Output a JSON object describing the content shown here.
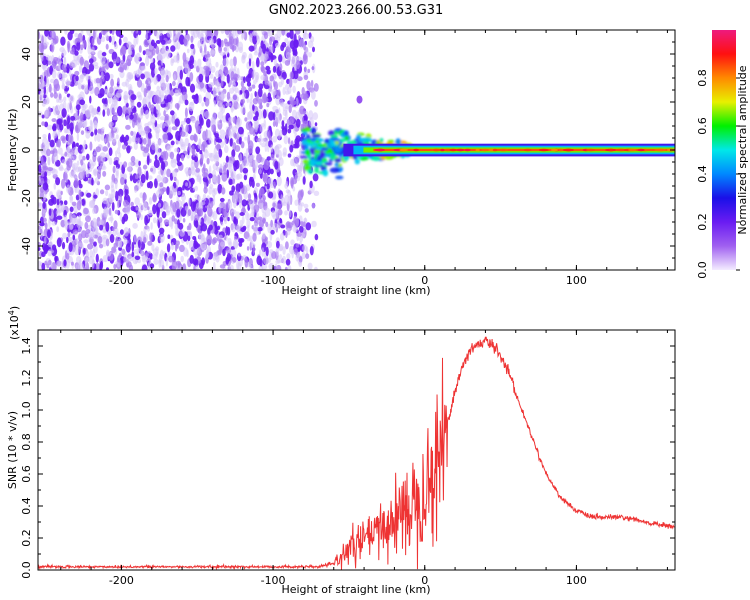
{
  "title": "GN02.2023.266.00.53.G31",
  "chart_data": [
    {
      "type": "heatmap",
      "xlabel": "Height of straight line (km)",
      "ylabel": "Frequency (Hz)",
      "xlim": [
        -255,
        165
      ],
      "ylim": [
        -50,
        50
      ],
      "xticks": [
        -200,
        -100,
        0,
        100
      ],
      "yticks": [
        -40,
        -20,
        0,
        20,
        40
      ],
      "colorbar": {
        "label": "Normalized spectral amplitude",
        "range": [
          0,
          1
        ],
        "ticks": [
          "0.0",
          "0.2",
          "0.4",
          "0.6",
          "0.8"
        ],
        "colormap": [
          "#f4ecff",
          "#a060f0",
          "#6a1cf2",
          "#1a10e8",
          "#0088ff",
          "#00e8e8",
          "#00f000",
          "#e8f000",
          "#ff8a00",
          "#ff1010",
          "#ee1a7e"
        ]
      },
      "noise_region": {
        "x": [
          -255,
          -78
        ],
        "y": [
          -50,
          50
        ],
        "amplitude": 0.15
      },
      "signal_band": {
        "x": [
          -80,
          165
        ],
        "center_hz": 0,
        "halfwidth_hz": [
          10,
          1.2
        ],
        "amplitude": 0.85
      },
      "outlier": {
        "x": -43,
        "y": 21,
        "amplitude": 0.12
      }
    },
    {
      "type": "line",
      "xlabel": "Height of straight line (km)",
      "ylabel": "SNR (10 * v/v)",
      "yscale_label": "(x10",
      "yscale_exp": "4",
      "xlim": [
        -255,
        165
      ],
      "ylim": [
        0,
        1.5
      ],
      "xticks": [
        -200,
        -100,
        0,
        100
      ],
      "yticks": [
        "0.0",
        "0.2",
        "0.4",
        "0.6",
        "0.8",
        "1.0",
        "1.2",
        "1.4"
      ],
      "color": "#ee3333",
      "series": [
        {
          "x": [
            -255,
            -200,
            -150,
            -100,
            -70,
            -60,
            -52,
            -45,
            -38,
            -30,
            -22,
            -15,
            -8,
            -2,
            5,
            12,
            18,
            25,
            32,
            40,
            48,
            55,
            62,
            70,
            80,
            90,
            100,
            110,
            120,
            130,
            140,
            150,
            165
          ],
          "y": [
            0.02,
            0.02,
            0.02,
            0.02,
            0.02,
            0.04,
            0.12,
            0.16,
            0.2,
            0.24,
            0.3,
            0.36,
            0.42,
            0.5,
            0.6,
            0.78,
            1.05,
            1.28,
            1.4,
            1.43,
            1.38,
            1.25,
            1.05,
            0.85,
            0.6,
            0.45,
            0.37,
            0.33,
            0.33,
            0.33,
            0.31,
            0.29,
            0.27
          ]
        }
      ]
    }
  ]
}
